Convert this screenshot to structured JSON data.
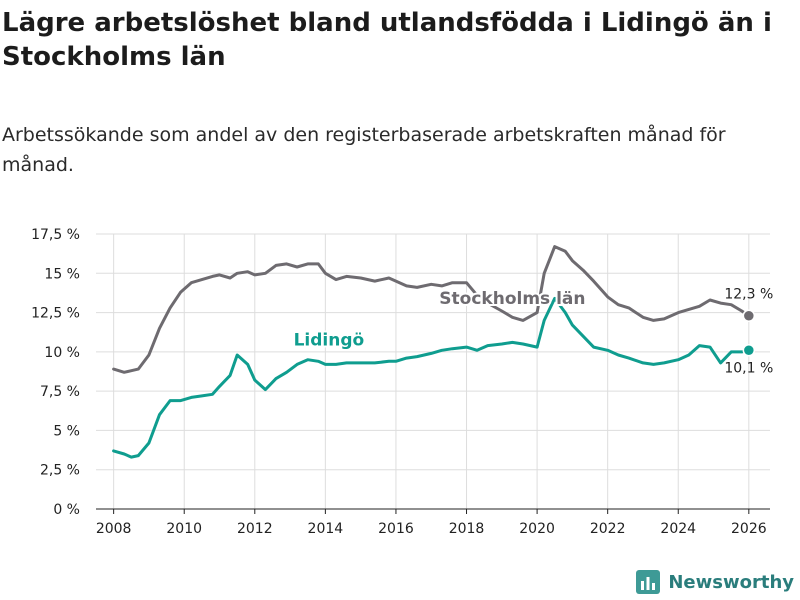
{
  "colors": {
    "stockholm": "#6e6b70",
    "lidingo": "#0f9d8f",
    "grid": "#dddddd",
    "axis": "#222222",
    "brand": "#2a7d7c"
  },
  "brand": {
    "name": "Newsworthy",
    "icon": "bar-chart-icon"
  },
  "chart_data": {
    "type": "line",
    "title": "Lägre arbetslöshet bland utlandsfödda i Lidingö än i Stockholms län",
    "subtitle": "Arbetssökande som andel av den registerbaserade arbetskraften månad för månad.",
    "xlabel": "",
    "ylabel": "",
    "xlim": [
      2007.5,
      2026.6
    ],
    "ylim": [
      0,
      17.5
    ],
    "x_ticks": [
      2008,
      2010,
      2012,
      2014,
      2016,
      2018,
      2020,
      2022,
      2024,
      2026
    ],
    "x_tick_labels": [
      "2008",
      "2010",
      "2012",
      "2014",
      "2016",
      "2018",
      "2020",
      "2022",
      "2024",
      "2026"
    ],
    "y_ticks": [
      0,
      2.5,
      5,
      7.5,
      10,
      12.5,
      15,
      17.5
    ],
    "y_tick_labels": [
      "0 %",
      "2,5 %",
      "5 %",
      "7,5 %",
      "10 %",
      "12,5 %",
      "15 %",
      "17,5 %"
    ],
    "grid": true,
    "series": [
      {
        "name": "Stockholms län",
        "end_label": "12,3 %",
        "x": [
          2008.0,
          2008.3,
          2008.5,
          2008.7,
          2009.0,
          2009.3,
          2009.6,
          2009.9,
          2010.2,
          2010.5,
          2010.8,
          2011.0,
          2011.3,
          2011.5,
          2011.8,
          2012.0,
          2012.3,
          2012.6,
          2012.9,
          2013.2,
          2013.5,
          2013.8,
          2014.0,
          2014.3,
          2014.6,
          2015.0,
          2015.4,
          2015.8,
          2016.0,
          2016.3,
          2016.6,
          2017.0,
          2017.3,
          2017.6,
          2018.0,
          2018.3,
          2018.6,
          2019.0,
          2019.3,
          2019.6,
          2020.0,
          2020.2,
          2020.5,
          2020.8,
          2021.0,
          2021.3,
          2021.6,
          2022.0,
          2022.3,
          2022.6,
          2023.0,
          2023.3,
          2023.6,
          2024.0,
          2024.3,
          2024.6,
          2024.9,
          2025.2,
          2025.5,
          2025.8,
          2026.0
        ],
        "values": [
          8.9,
          8.7,
          8.8,
          8.9,
          9.8,
          11.5,
          12.8,
          13.8,
          14.4,
          14.6,
          14.8,
          14.9,
          14.7,
          15.0,
          15.1,
          14.9,
          15.0,
          15.5,
          15.6,
          15.4,
          15.6,
          15.6,
          15.0,
          14.6,
          14.8,
          14.7,
          14.5,
          14.7,
          14.5,
          14.2,
          14.1,
          14.3,
          14.2,
          14.4,
          14.4,
          13.6,
          13.1,
          12.6,
          12.2,
          12.0,
          12.5,
          15.0,
          16.7,
          16.4,
          15.8,
          15.2,
          14.5,
          13.5,
          13.0,
          12.8,
          12.2,
          12.0,
          12.1,
          12.5,
          12.7,
          12.9,
          13.3,
          13.1,
          13.0,
          12.6,
          12.3
        ]
      },
      {
        "name": "Lidingö",
        "end_label": "10,1 %",
        "x": [
          2008.0,
          2008.3,
          2008.5,
          2008.7,
          2009.0,
          2009.3,
          2009.6,
          2009.9,
          2010.2,
          2010.5,
          2010.8,
          2011.0,
          2011.3,
          2011.5,
          2011.8,
          2012.0,
          2012.3,
          2012.6,
          2012.9,
          2013.2,
          2013.5,
          2013.8,
          2014.0,
          2014.3,
          2014.6,
          2015.0,
          2015.4,
          2015.8,
          2016.0,
          2016.3,
          2016.6,
          2017.0,
          2017.3,
          2017.6,
          2018.0,
          2018.3,
          2018.6,
          2019.0,
          2019.3,
          2019.6,
          2020.0,
          2020.2,
          2020.5,
          2020.8,
          2021.0,
          2021.3,
          2021.6,
          2022.0,
          2022.3,
          2022.6,
          2023.0,
          2023.3,
          2023.6,
          2024.0,
          2024.3,
          2024.6,
          2024.9,
          2025.2,
          2025.5,
          2025.8,
          2026.0
        ],
        "values": [
          3.7,
          3.5,
          3.3,
          3.4,
          4.2,
          6.0,
          6.9,
          6.9,
          7.1,
          7.2,
          7.3,
          7.8,
          8.5,
          9.8,
          9.2,
          8.2,
          7.6,
          8.3,
          8.7,
          9.2,
          9.5,
          9.4,
          9.2,
          9.2,
          9.3,
          9.3,
          9.3,
          9.4,
          9.4,
          9.6,
          9.7,
          9.9,
          10.1,
          10.2,
          10.3,
          10.1,
          10.4,
          10.5,
          10.6,
          10.5,
          10.3,
          12.0,
          13.4,
          12.5,
          11.7,
          11.0,
          10.3,
          10.1,
          9.8,
          9.6,
          9.3,
          9.2,
          9.3,
          9.5,
          9.8,
          10.4,
          10.3,
          9.3,
          10.0,
          10.0,
          10.1
        ]
      }
    ],
    "annotations": [
      {
        "text": "Stockholms län",
        "series": "Stockholms län",
        "x": 2019.3,
        "y": 13.05
      },
      {
        "text": "Lidingö",
        "series": "Lidingö",
        "x": 2014.1,
        "y": 10.4
      }
    ]
  }
}
